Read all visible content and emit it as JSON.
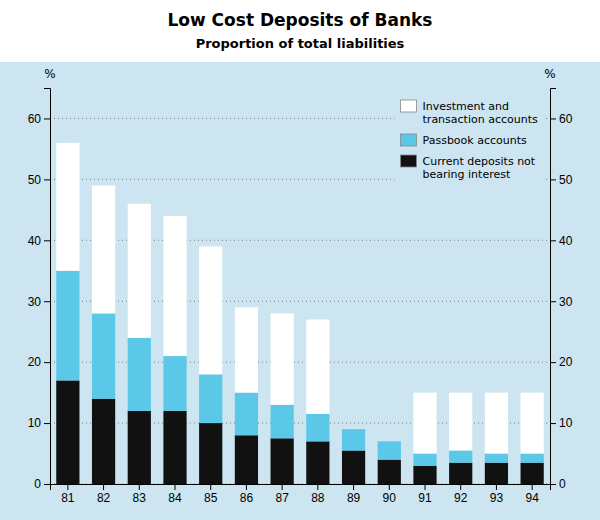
{
  "chart_data": {
    "type": "bar",
    "stacked": true,
    "title": "Low Cost Deposits of Banks",
    "subtitle": "Proportion of total liabilities",
    "ylabel": "%",
    "y2label": "%",
    "categories": [
      "81",
      "82",
      "83",
      "84",
      "85",
      "86",
      "87",
      "88",
      "89",
      "90",
      "91",
      "92",
      "93",
      "94"
    ],
    "series": [
      {
        "name": "Current deposits not\nbearing interest",
        "color": "#111111",
        "values": [
          17,
          14,
          12,
          12,
          10,
          8,
          7.5,
          7,
          5.5,
          4,
          3,
          3.5,
          3.5,
          3.5
        ]
      },
      {
        "name": "Passbook accounts",
        "color": "#5bc8e8",
        "values": [
          18,
          14,
          12,
          9,
          8,
          7,
          5.5,
          4.5,
          3.5,
          3,
          2,
          2,
          1.5,
          1.5
        ]
      },
      {
        "name": "Investment and\ntransaction accounts",
        "color": "#ffffff",
        "values": [
          21,
          21,
          22,
          23,
          21,
          14,
          15,
          15.5,
          0,
          0,
          10,
          9.5,
          10,
          10
        ]
      }
    ],
    "ylim": [
      0,
      65
    ],
    "yticks": [
      0,
      10,
      20,
      30,
      40,
      50,
      60
    ],
    "y2lim": [
      0,
      65
    ],
    "y2ticks": [
      0,
      10,
      20,
      30,
      40,
      50,
      60
    ],
    "grid": true,
    "legend": "upper right"
  }
}
